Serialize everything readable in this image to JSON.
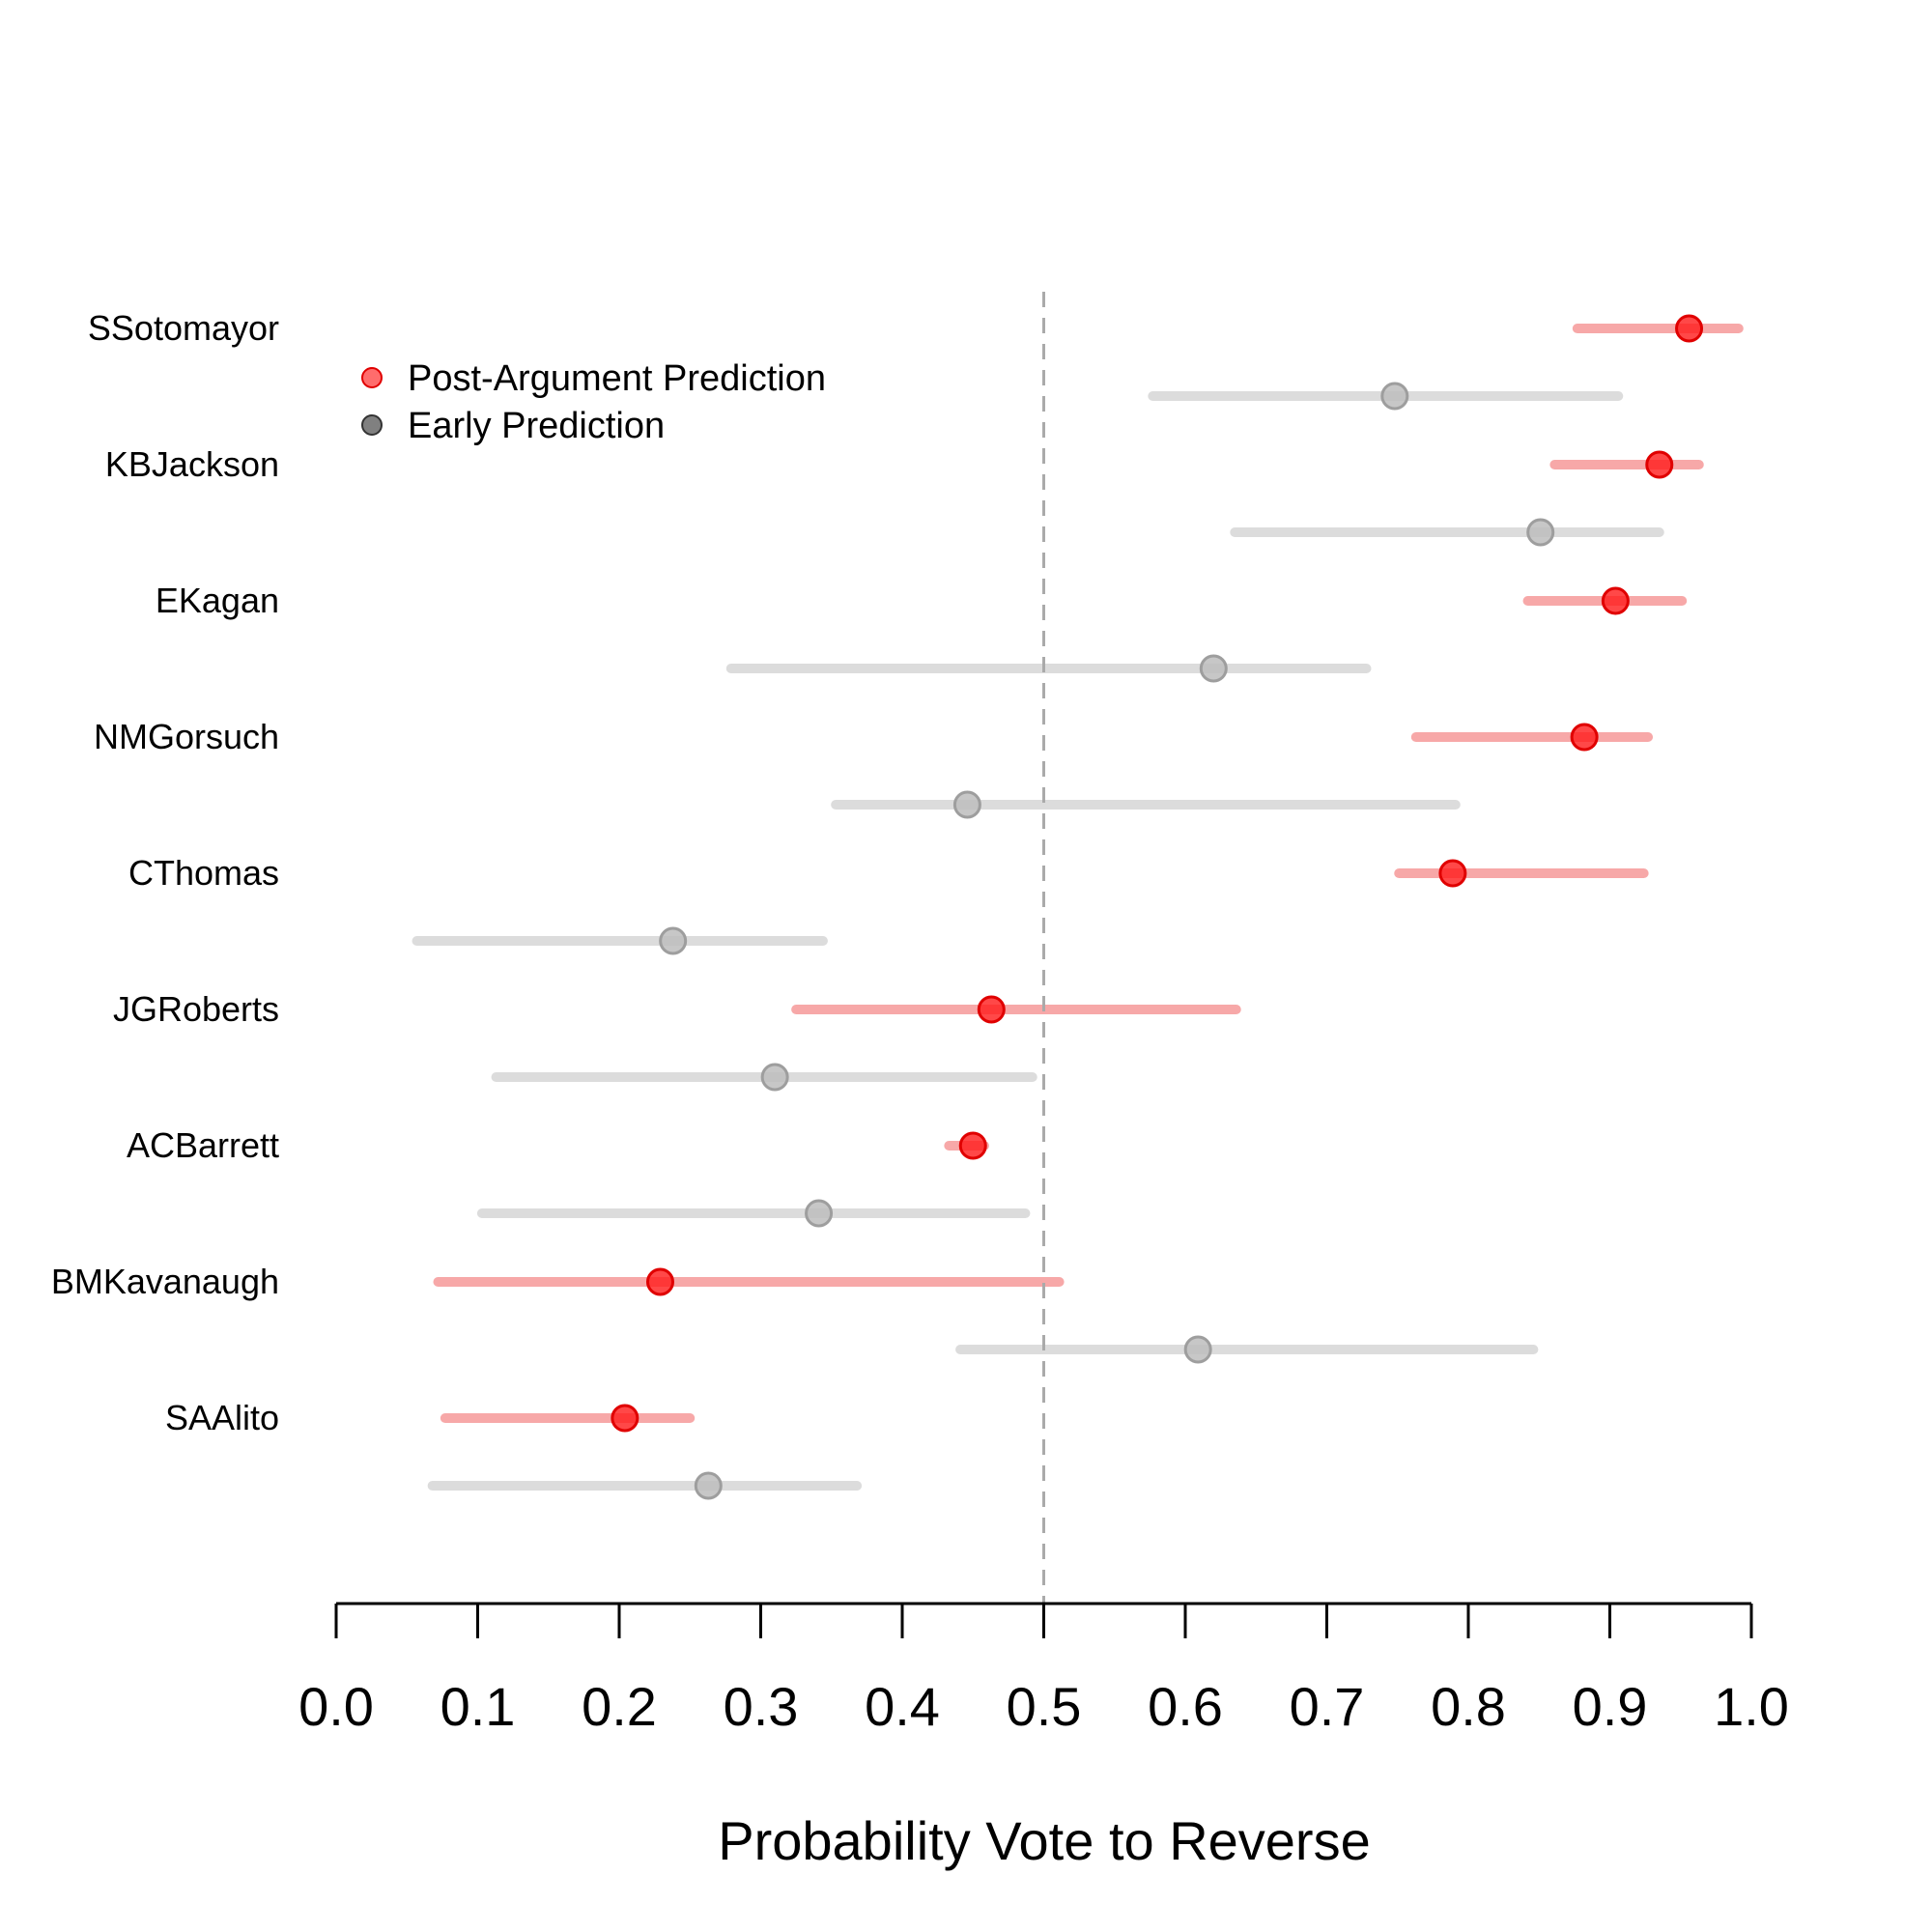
{
  "chart_data": {
    "type": "dot-interval",
    "xlabel": "Probability Vote to Reverse",
    "xlim": [
      0.0,
      1.0
    ],
    "xticks": [
      "0.0",
      "0.1",
      "0.2",
      "0.3",
      "0.4",
      "0.5",
      "0.6",
      "0.7",
      "0.8",
      "0.9",
      "1.0"
    ],
    "reference_line": 0.5,
    "legend": {
      "position": "top-left",
      "post_label": "Post-Argument Prediction",
      "early_label": "Early Prediction"
    },
    "colors": {
      "post_point": "#ff1a1a",
      "post_interval": "#f7a8a8",
      "early_point": "#9e9e9e",
      "early_interval": "#dcdcdc",
      "reference_line": "#aaaaaa"
    },
    "justices": [
      {
        "name": "SSotomayor",
        "post": {
          "estimate": 0.956,
          "low": 0.877,
          "high": 0.991
        },
        "early": {
          "estimate": 0.748,
          "low": 0.577,
          "high": 0.906
        }
      },
      {
        "name": "KBJackson",
        "post": {
          "estimate": 0.935,
          "low": 0.861,
          "high": 0.963
        },
        "early": {
          "estimate": 0.851,
          "low": 0.635,
          "high": 0.935
        }
      },
      {
        "name": "EKagan",
        "post": {
          "estimate": 0.904,
          "low": 0.842,
          "high": 0.951
        },
        "early": {
          "estimate": 0.62,
          "low": 0.279,
          "high": 0.728
        }
      },
      {
        "name": "NMGorsuch",
        "post": {
          "estimate": 0.882,
          "low": 0.763,
          "high": 0.927
        },
        "early": {
          "estimate": 0.446,
          "low": 0.353,
          "high": 0.791
        }
      },
      {
        "name": "CThomas",
        "post": {
          "estimate": 0.789,
          "low": 0.751,
          "high": 0.924
        },
        "early": {
          "estimate": 0.238,
          "low": 0.057,
          "high": 0.344
        }
      },
      {
        "name": "JGRoberts",
        "post": {
          "estimate": 0.463,
          "low": 0.325,
          "high": 0.636
        },
        "early": {
          "estimate": 0.31,
          "low": 0.113,
          "high": 0.492
        }
      },
      {
        "name": "ACBarrett",
        "post": {
          "estimate": 0.45,
          "low": 0.433,
          "high": 0.458
        },
        "early": {
          "estimate": 0.341,
          "low": 0.103,
          "high": 0.487
        }
      },
      {
        "name": "BMKavanaugh",
        "post": {
          "estimate": 0.229,
          "low": 0.072,
          "high": 0.511
        },
        "early": {
          "estimate": 0.609,
          "low": 0.441,
          "high": 0.846
        }
      },
      {
        "name": "SAAlito",
        "post": {
          "estimate": 0.204,
          "low": 0.077,
          "high": 0.25
        },
        "early": {
          "estimate": 0.263,
          "low": 0.068,
          "high": 0.368
        }
      }
    ]
  }
}
